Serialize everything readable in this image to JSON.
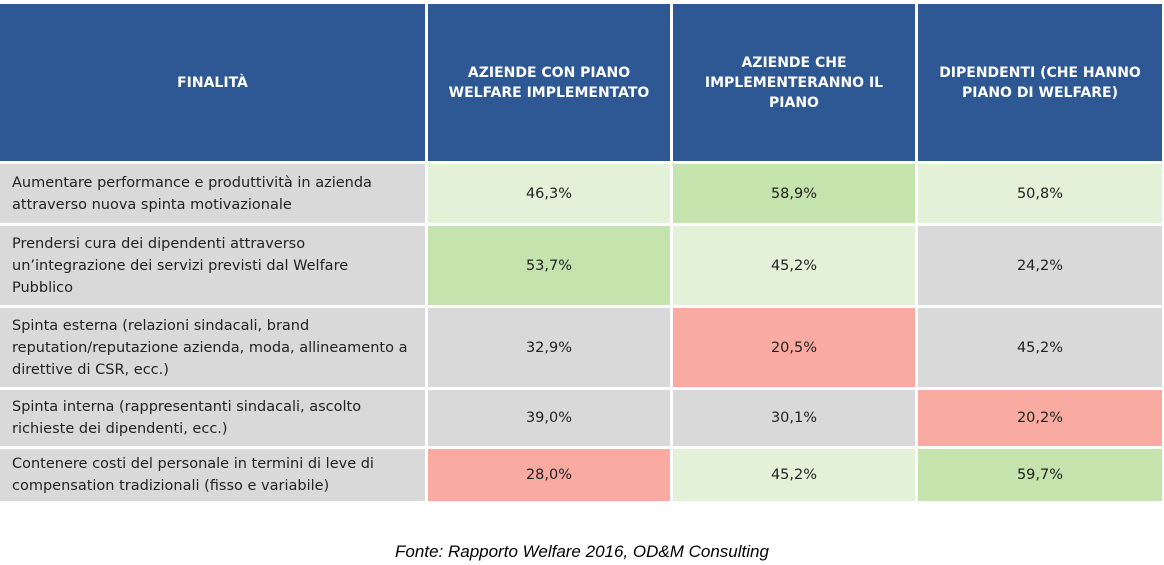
{
  "chart_data": {
    "type": "table",
    "columns": [
      "FINALITÀ",
      "AZIENDE CON PIANO WELFARE IMPLEMENTATO",
      "AZIENDE CHE IMPLEMENTERANNO IL PIANO",
      "DIPENDENTI (CHE HANNO PIANO DI WELFARE)"
    ],
    "rows": [
      {
        "label": "Aumentare performance e produttività in azienda attraverso nuova spinta motivazionale",
        "values": [
          "46,3%",
          "58,9%",
          "50,8%"
        ],
        "colors": [
          "#e2f1d8",
          "#c5e3ac",
          "#e2f1d8"
        ]
      },
      {
        "label": "Prendersi cura dei dipendenti attraverso un’integrazione dei servizi previsti dal Welfare Pubblico",
        "values": [
          "53,7%",
          "45,2%",
          "24,2%"
        ],
        "colors": [
          "#c5e3ac",
          "#e2f1d8",
          "#d9d9d9"
        ]
      },
      {
        "label": "Spinta esterna (relazioni sindacali, brand reputation/reputazione azienda, moda, allineamento a direttive di CSR, ecc.)",
        "values": [
          "32,9%",
          "20,5%",
          "45,2%"
        ],
        "colors": [
          "#d9d9d9",
          "#f9aba1",
          "#d9d9d9"
        ]
      },
      {
        "label": "Spinta interna (rappresentanti sindacali, ascolto richieste dei dipendenti, ecc.)",
        "values": [
          "39,0%",
          "30,1%",
          "20,2%"
        ],
        "colors": [
          "#d9d9d9",
          "#d9d9d9",
          "#f9aba1"
        ]
      },
      {
        "label": "Contenere costi del personale in termini di leve di compensation tradizionali (fisso e variabile)",
        "values": [
          "28,0%",
          "45,2%",
          "59,7%"
        ],
        "colors": [
          "#f9aba1",
          "#e2f1d8",
          "#c5e3ac"
        ]
      }
    ],
    "label_cell_color": "#d9d9d9",
    "header_color": "#2e5894"
  },
  "caption": "Fonte: Rapporto Welfare 2016, OD&M Consulting"
}
